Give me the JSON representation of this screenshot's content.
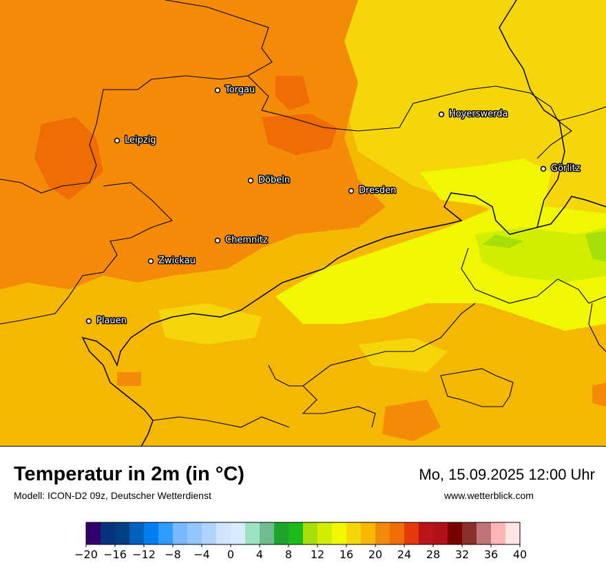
{
  "title": "Temperatur in 2m (in °C)",
  "model": "Modell: ICON-D2 09z, Deutscher Wetterdienst",
  "datetime": "Mo, 15.09.2025 12:00 Uhr",
  "website": "www.wetterblick.com",
  "cities": [
    {
      "name": "Torgau"
    },
    {
      "name": "Hoyerswerda"
    },
    {
      "name": "Leipzig"
    },
    {
      "name": "Görlitz"
    },
    {
      "name": "Döbeln"
    },
    {
      "name": "Dresden"
    },
    {
      "name": "Chemnitz"
    },
    {
      "name": "Zwickau"
    },
    {
      "name": "Plauen"
    }
  ],
  "scale": {
    "tick_labels": [
      "−20",
      "−16",
      "−12",
      "−8",
      "−4",
      "0",
      "4",
      "8",
      "12",
      "16",
      "20",
      "24",
      "28",
      "32",
      "36",
      "40"
    ],
    "colors": [
      "#34006b",
      "#06337b",
      "#003f7f",
      "#0061bd",
      "#0080ee",
      "#2e9cff",
      "#76b9ff",
      "#92c6fb",
      "#aed3ff",
      "#cfe4ff",
      "#d9ebff",
      "#9de1c2",
      "#6dbd91",
      "#1ea52b",
      "#1ebb1c",
      "#a7df0b",
      "#d1ee00",
      "#f0f700",
      "#f4d60a",
      "#f4b702",
      "#f38b08",
      "#f06d05",
      "#e6390c",
      "#b81419",
      "#b2101a",
      "#7b0000",
      "#8a2e2e",
      "#c07676",
      "#ffb6b6",
      "#ffe4e4"
    ]
  }
}
